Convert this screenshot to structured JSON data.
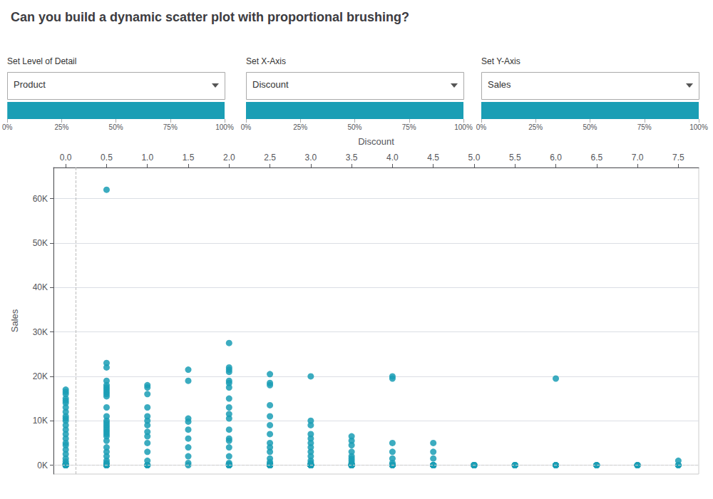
{
  "chart_data": {
    "type": "scatter",
    "title": "Can you build a dynamic scatter plot with proportional brushing?",
    "xlabel": "Discount",
    "ylabel": "Sales",
    "color": "#1a9eb5",
    "grid": true,
    "xlim": [
      -0.15,
      7.75
    ],
    "ylim": [
      -2000,
      67000
    ],
    "xticks": [
      {
        "value": 0.0,
        "label": "0.0"
      },
      0.5,
      {
        "value": 1.0,
        "label": "1.0"
      },
      1.5,
      {
        "value": 2.0,
        "label": "2.0"
      },
      2.5,
      {
        "value": 3.0,
        "label": "3.0"
      },
      3.5,
      {
        "value": 4.0,
        "label": "4.0"
      },
      4.5,
      {
        "value": 5.0,
        "label": "5.0"
      },
      5.5,
      {
        "value": 6.0,
        "label": "6.0"
      },
      6.5,
      {
        "value": 7.0,
        "label": "7.0"
      },
      7.5
    ],
    "yticks": [
      {
        "value": 0,
        "label": "0K"
      },
      {
        "value": 10000,
        "label": "10K"
      },
      {
        "value": 20000,
        "label": "20K"
      },
      {
        "value": 30000,
        "label": "30K"
      },
      {
        "value": 40000,
        "label": "40K"
      },
      {
        "value": 50000,
        "label": "50K"
      },
      {
        "value": 60000,
        "label": "60K"
      }
    ],
    "vline_x": 0.12,
    "vline_color": "#bbbbbb",
    "hline_y": 0,
    "hline_color": "#cccccc",
    "controls": [
      {
        "label": "Set Level of Detail",
        "value": "Product"
      },
      {
        "label": "Set X-Axis",
        "value": "Discount"
      },
      {
        "label": "Set Y-Axis",
        "value": "Sales"
      }
    ],
    "control_bar_color": "#1a9eb5",
    "control_ticks": [
      {
        "value": 0,
        "label": "0%"
      },
      {
        "value": 0.25,
        "label": "25%"
      },
      {
        "value": 0.5,
        "label": "50%"
      },
      {
        "value": 0.75,
        "label": "75%"
      },
      {
        "value": 1.0,
        "label": "100%"
      }
    ],
    "x": [
      0.0,
      0.0,
      0.0,
      0.0,
      0.0,
      0.0,
      0.0,
      0.0,
      0.0,
      0.0,
      0.0,
      0.0,
      0.0,
      0.0,
      0.0,
      0.0,
      0.0,
      0.0,
      0.0,
      0.0,
      0.0,
      0.0,
      0.0,
      0.0,
      0.0,
      0.0,
      0.0,
      0.0,
      0.0,
      0.0,
      0.5,
      0.5,
      0.5,
      0.5,
      0.5,
      0.5,
      0.5,
      0.5,
      0.5,
      0.5,
      0.5,
      0.5,
      0.5,
      0.5,
      0.5,
      0.5,
      0.5,
      0.5,
      0.5,
      0.5,
      0.5,
      0.5,
      0.5,
      0.5,
      0.5,
      0.5,
      0.5,
      0.5,
      0.5,
      0.5,
      0.5,
      0.5,
      0.5,
      0.5,
      0.5,
      0.5,
      0.5,
      0.5,
      0.5,
      0.5,
      1.0,
      1.0,
      1.0,
      1.0,
      1.0,
      1.0,
      1.0,
      1.0,
      1.0,
      1.0,
      1.0,
      1.0,
      1.0,
      1.0,
      1.0,
      1.0,
      1.5,
      1.5,
      1.5,
      1.5,
      1.5,
      1.5,
      1.5,
      1.5,
      1.5,
      1.5,
      2.0,
      2.0,
      2.0,
      2.0,
      2.0,
      2.0,
      2.0,
      2.0,
      2.0,
      2.0,
      2.0,
      2.0,
      2.0,
      2.0,
      2.0,
      2.0,
      2.0,
      2.0,
      2.0,
      2.0,
      2.0,
      2.0,
      2.0,
      2.0,
      2.0,
      2.5,
      2.5,
      2.5,
      2.5,
      2.5,
      2.5,
      2.5,
      2.5,
      2.5,
      2.5,
      2.5,
      2.5,
      2.5,
      2.5,
      2.5,
      2.5,
      2.5,
      2.5,
      2.5,
      2.5,
      2.5,
      2.5,
      2.5,
      2.5,
      3.0,
      3.0,
      3.0,
      3.0,
      3.0,
      3.0,
      3.0,
      3.0,
      3.0,
      3.0,
      3.0,
      3.0,
      3.0,
      3.0,
      3.0,
      3.0,
      3.0,
      3.0,
      3.0,
      3.0,
      3.0,
      3.0,
      3.0,
      3.0,
      3.0,
      3.0,
      3.0,
      3.5,
      3.5,
      3.5,
      3.5,
      3.5,
      3.5,
      3.5,
      3.5,
      3.5,
      3.5,
      3.5,
      3.5,
      3.5,
      3.5,
      3.5,
      3.5,
      3.5,
      3.5,
      3.5,
      3.5,
      4.0,
      4.0,
      4.0,
      4.0,
      4.0,
      4.0,
      4.0,
      4.0,
      4.0,
      4.0,
      4.0,
      4.0,
      4.0,
      4.5,
      4.5,
      4.5,
      4.5,
      4.5,
      4.5,
      4.5,
      4.5,
      4.5,
      4.5,
      4.5,
      4.5,
      4.5,
      4.5,
      5.0,
      5.0,
      5.0,
      5.0,
      5.0,
      5.0,
      5.0,
      5.0,
      5.0,
      5.0,
      5.0,
      5.0,
      5.5,
      5.5,
      5.5,
      5.5,
      5.5,
      5.5,
      5.5,
      5.5,
      6.0,
      6.0,
      6.0,
      6.0,
      6.0,
      6.0,
      6.0,
      6.0,
      6.5,
      6.5,
      6.5,
      6.5,
      6.5,
      7.0,
      7.0,
      7.0,
      7.0,
      7.0,
      7.5,
      7.5,
      7.5,
      7.5
    ],
    "values": [
      14500,
      17000,
      16500,
      16000,
      15000,
      14000,
      13000,
      12000,
      11000,
      10500,
      10000,
      9000,
      8000,
      7000,
      6000,
      5000,
      4500,
      3500,
      2500,
      1500,
      800,
      300,
      100,
      0,
      0,
      0,
      0,
      0,
      0,
      0,
      62000,
      23000,
      22000,
      19000,
      18000,
      17500,
      17000,
      16500,
      16000,
      15500,
      13000,
      11000,
      10000,
      9500,
      9000,
      8500,
      8000,
      7500,
      7000,
      6500,
      5500,
      4000,
      3000,
      2000,
      1000,
      500,
      200,
      100,
      50,
      0,
      0,
      0,
      0,
      0,
      0,
      0,
      0,
      0,
      0,
      0,
      18000,
      17500,
      16000,
      13000,
      11000,
      10000,
      9000,
      7500,
      6500,
      5000,
      3000,
      1000,
      0,
      0,
      0,
      0,
      21500,
      19000,
      10500,
      9800,
      8000,
      6000,
      4000,
      2000,
      500,
      0,
      27500,
      22000,
      21000,
      21500,
      19000,
      18500,
      17500,
      15000,
      13000,
      11500,
      10500,
      8000,
      6000,
      5500,
      4000,
      2000,
      500,
      200,
      0,
      0,
      0,
      0,
      0,
      0,
      0,
      20500,
      18500,
      18000,
      13500,
      11000,
      9000,
      7000,
      5000,
      4000,
      3000,
      1500,
      700,
      300,
      0,
      0,
      0,
      0,
      0,
      0,
      0,
      0,
      0,
      0,
      0,
      20000,
      10000,
      9000,
      7000,
      6000,
      5000,
      4000,
      3000,
      2000,
      1000,
      500,
      200,
      100,
      0,
      0,
      0,
      0,
      0,
      0,
      0,
      0,
      0,
      0,
      0,
      0,
      0,
      0,
      6500,
      5500,
      4500,
      3000,
      2000,
      1500,
      1000,
      500,
      200,
      100,
      0,
      0,
      0,
      0,
      0,
      0,
      0,
      0,
      0,
      0,
      20000,
      19500,
      5000,
      3000,
      1500,
      500,
      0,
      0,
      0,
      0,
      0,
      0,
      0,
      5000,
      3000,
      1500,
      0,
      0,
      0,
      0,
      0,
      0,
      0,
      0,
      0,
      0,
      0,
      0,
      0,
      0,
      0,
      0,
      0,
      0,
      0,
      0,
      0,
      0,
      0,
      0,
      0,
      0,
      0,
      0,
      0,
      0,
      0,
      19500,
      0,
      0,
      0,
      0,
      0,
      0,
      0,
      0,
      0,
      0,
      0,
      0,
      0,
      0,
      0,
      0,
      0,
      0,
      1000,
      0,
      0
    ]
  }
}
